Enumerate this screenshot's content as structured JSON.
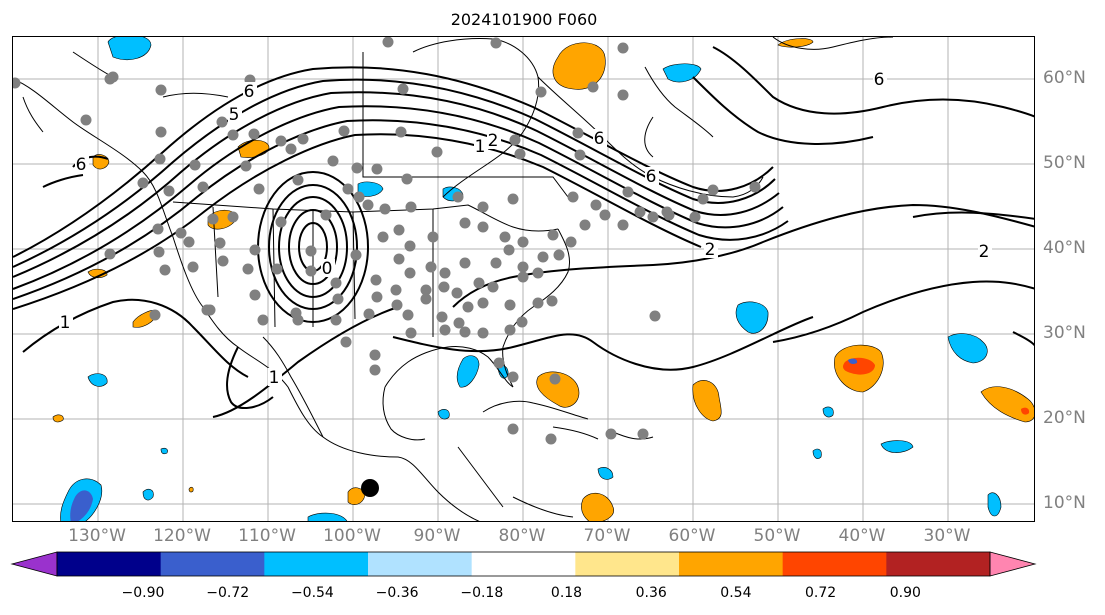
{
  "title": "2024101900 F060",
  "lon_labels": [
    "130°W",
    "120°W",
    "110°W",
    "100°W",
    "90°W",
    "80°W",
    "70°W",
    "60°W",
    "50°W",
    "40°W",
    "30°W"
  ],
  "lat_labels": [
    "60°N",
    "50°N",
    "40°N",
    "30°N",
    "20°N",
    "10°N"
  ],
  "contour_labels": [
    "6",
    "5",
    "6",
    "6",
    "2",
    "1",
    "6",
    "6",
    "2",
    "2",
    "1",
    "1",
    "0"
  ],
  "colorbar": {
    "ticks": [
      "−0.90",
      "−0.72",
      "−0.54",
      "−0.36",
      "−0.18",
      "0.18",
      "0.36",
      "0.54",
      "0.72",
      "0.90"
    ],
    "colors": [
      "#9a32cd",
      "#00008b",
      "#3a5fcd",
      "#00bfff",
      "#b0e2ff",
      "#ffffff",
      "#ffe68c",
      "#ffa500",
      "#ff4500",
      "#b22222",
      "#ff85b0"
    ]
  },
  "colors": {
    "positive_fill": "#ffa500",
    "negative_fill": "#00bfff",
    "station_dots": "#808080",
    "contour": "#000000",
    "grid": "#b3b3b3"
  }
}
